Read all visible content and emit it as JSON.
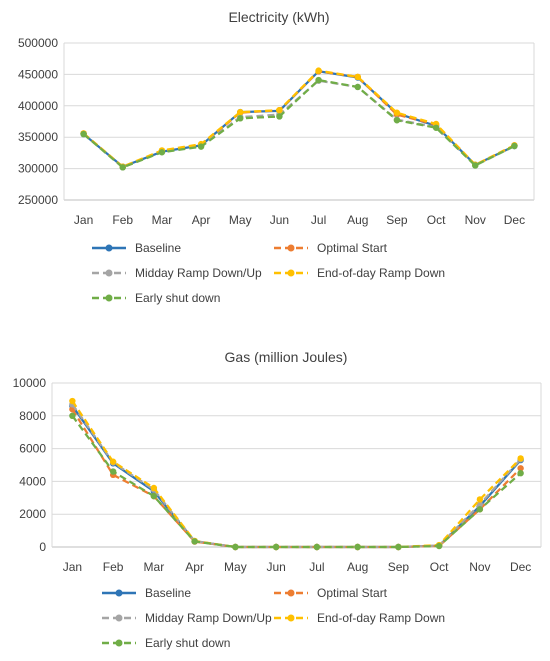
{
  "chart_data": [
    {
      "type": "line",
      "title": "Electricity (kWh)",
      "categories": [
        "Jan",
        "Feb",
        "Mar",
        "Apr",
        "May",
        "Jun",
        "Jul",
        "Aug",
        "Sep",
        "Oct",
        "Nov",
        "Dec"
      ],
      "ylim": [
        250000,
        500000
      ],
      "yticks": [
        "500000",
        "450000",
        "400000",
        "350000",
        "300000",
        "250000"
      ],
      "grid": true,
      "legend_position": "bottom",
      "series": [
        {
          "name": "Baseline",
          "color": "#2e75b6",
          "dash": false,
          "values": [
            355000,
            303000,
            327000,
            337000,
            390000,
            392000,
            455000,
            445000,
            388000,
            368000,
            306000,
            336000
          ]
        },
        {
          "name": "Optimal Start",
          "color": "#ed7d31",
          "dash": true,
          "values": [
            356000,
            303000,
            328000,
            338000,
            389000,
            393000,
            455000,
            446000,
            386000,
            370000,
            306000,
            337000
          ]
        },
        {
          "name": "Midday Ramp Down/Up",
          "color": "#a5a5a5",
          "dash": true,
          "values": [
            355000,
            302000,
            327000,
            336000,
            382000,
            386000,
            440000,
            430000,
            378000,
            366000,
            305000,
            336000
          ]
        },
        {
          "name": "End-of-day Ramp Down",
          "color": "#ffc000",
          "dash": true,
          "values": [
            356000,
            303000,
            329000,
            339000,
            390000,
            393000,
            456000,
            446000,
            389000,
            371000,
            306000,
            337000
          ]
        },
        {
          "name": "Early shut down",
          "color": "#70ad47",
          "dash": true,
          "values": [
            355000,
            302000,
            326000,
            335000,
            380000,
            383000,
            441000,
            430000,
            377000,
            365000,
            305000,
            336000
          ]
        }
      ]
    },
    {
      "type": "line",
      "title": "Gas (million Joules)",
      "categories": [
        "Jan",
        "Feb",
        "Mar",
        "Apr",
        "May",
        "Jun",
        "Jul",
        "Aug",
        "Sep",
        "Oct",
        "Nov",
        "Dec"
      ],
      "ylim": [
        0,
        10000
      ],
      "yticks": [
        "10000",
        "8000",
        "6000",
        "4000",
        "2000",
        "0"
      ],
      "grid": true,
      "legend_position": "bottom",
      "series": [
        {
          "name": "Baseline",
          "color": "#2e75b6",
          "dash": false,
          "values": [
            8600,
            5100,
            3400,
            350,
            0,
            0,
            0,
            0,
            0,
            80,
            2500,
            5300
          ]
        },
        {
          "name": "Optimal Start",
          "color": "#ed7d31",
          "dash": true,
          "values": [
            8400,
            4400,
            3100,
            330,
            0,
            0,
            0,
            0,
            0,
            70,
            2300,
            4800
          ]
        },
        {
          "name": "Midday Ramp Down/Up",
          "color": "#a5a5a5",
          "dash": true,
          "values": [
            8700,
            5150,
            3500,
            360,
            0,
            0,
            0,
            0,
            0,
            90,
            2600,
            5350
          ]
        },
        {
          "name": "End-of-day Ramp Down",
          "color": "#ffc000",
          "dash": true,
          "values": [
            8900,
            5200,
            3600,
            370,
            0,
            0,
            0,
            0,
            0,
            120,
            2900,
            5400
          ]
        },
        {
          "name": "Early shut down",
          "color": "#70ad47",
          "dash": true,
          "values": [
            8000,
            4600,
            3100,
            340,
            0,
            0,
            0,
            0,
            0,
            60,
            2300,
            4500
          ]
        }
      ]
    }
  ]
}
